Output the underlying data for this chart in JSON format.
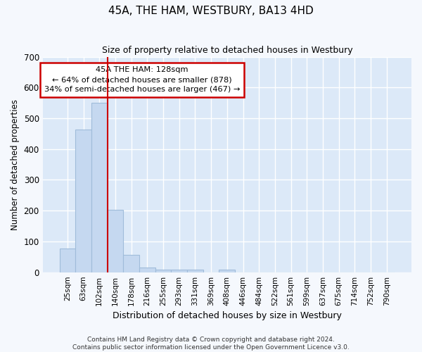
{
  "title": "45A, THE HAM, WESTBURY, BA13 4HD",
  "subtitle": "Size of property relative to detached houses in Westbury",
  "xlabel": "Distribution of detached houses by size in Westbury",
  "ylabel": "Number of detached properties",
  "categories": [
    "25sqm",
    "63sqm",
    "102sqm",
    "140sqm",
    "178sqm",
    "216sqm",
    "255sqm",
    "293sqm",
    "331sqm",
    "369sqm",
    "408sqm",
    "446sqm",
    "484sqm",
    "522sqm",
    "561sqm",
    "599sqm",
    "637sqm",
    "675sqm",
    "714sqm",
    "752sqm",
    "790sqm"
  ],
  "bar_values": [
    78,
    463,
    550,
    203,
    57,
    15,
    8,
    8,
    8,
    0,
    8,
    0,
    0,
    0,
    0,
    0,
    0,
    0,
    0,
    0,
    0
  ],
  "bar_color": "#c5d8f0",
  "bar_edge_color": "#a0bcda",
  "vline_x": 3,
  "vline_color": "#cc0000",
  "annotation_text": "45A THE HAM: 128sqm\n← 64% of detached houses are smaller (878)\n34% of semi-detached houses are larger (467) →",
  "annotation_box_color": "#ffffff",
  "annotation_box_edge": "#cc0000",
  "ylim": [
    0,
    700
  ],
  "yticks": [
    0,
    100,
    200,
    300,
    400,
    500,
    600,
    700
  ],
  "fig_bg_color": "#f5f8fd",
  "plot_bg_color": "#dce9f8",
  "grid_color": "#ffffff",
  "footer_line1": "Contains HM Land Registry data © Crown copyright and database right 2024.",
  "footer_line2": "Contains public sector information licensed under the Open Government Licence v3.0."
}
